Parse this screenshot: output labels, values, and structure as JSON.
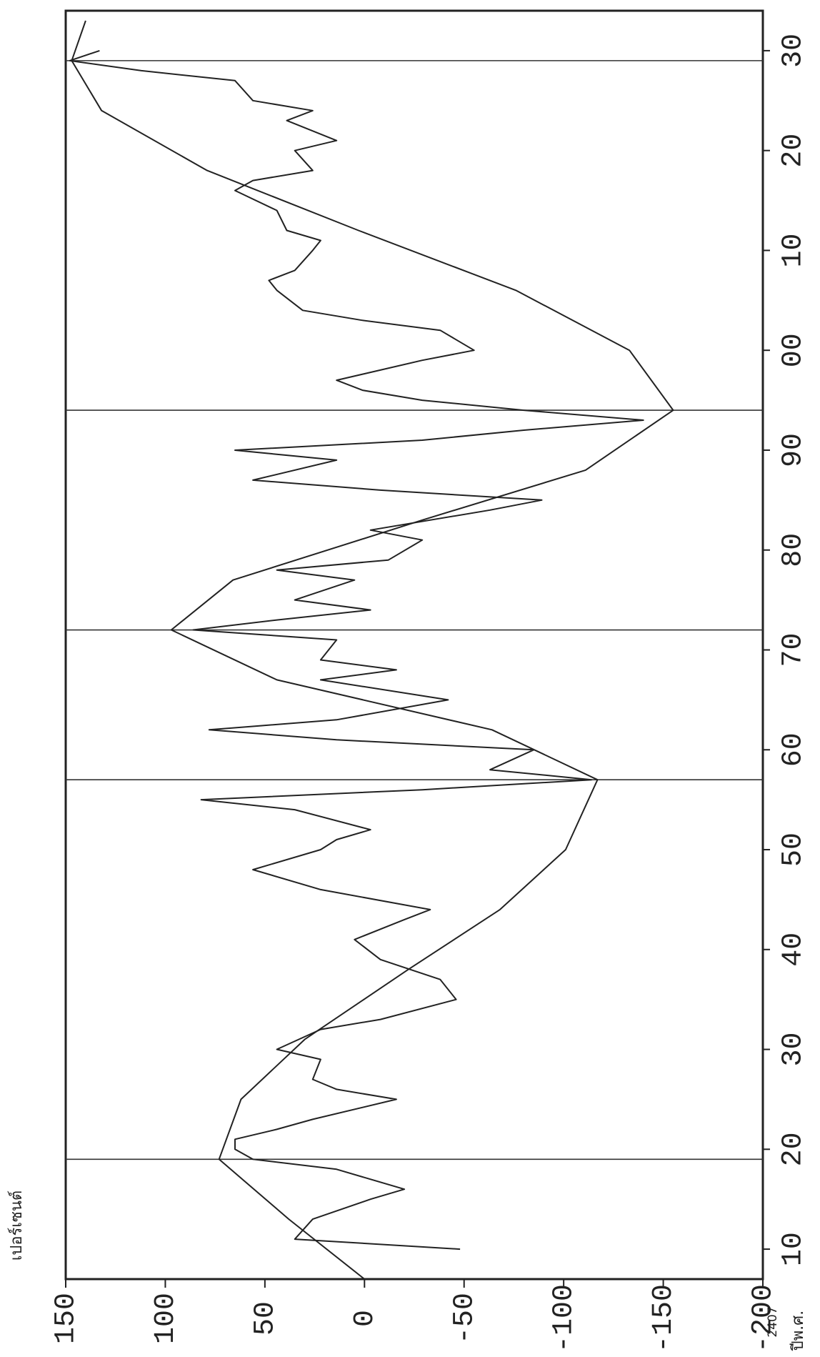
{
  "chart_data": {
    "type": "line",
    "y_label": "เปอร์เซนต์",
    "x_label": "ปีพ.ศ.",
    "x_origin_label": "2407",
    "xlim": [
      2407,
      2534
    ],
    "ylim": [
      -200,
      150
    ],
    "xticks": [
      {
        "value": 2410,
        "label": "10"
      },
      {
        "value": 2420,
        "label": "20"
      },
      {
        "value": 2430,
        "label": "30"
      },
      {
        "value": 2440,
        "label": "40"
      },
      {
        "value": 2450,
        "label": "50"
      },
      {
        "value": 2460,
        "label": "60"
      },
      {
        "value": 2470,
        "label": "70"
      },
      {
        "value": 2480,
        "label": "80"
      },
      {
        "value": 2490,
        "label": "90"
      },
      {
        "value": 2500,
        "label": "00"
      },
      {
        "value": 2510,
        "label": "10"
      },
      {
        "value": 2520,
        "label": "20"
      },
      {
        "value": 2530,
        "label": "30"
      }
    ],
    "yticks": [
      150,
      100,
      50,
      0,
      -50,
      -100,
      -150,
      -200
    ],
    "reference_lines": [
      2419,
      2457,
      2472,
      2494,
      2529
    ],
    "color": "#222222",
    "series": [
      {
        "color": "#222222",
        "x": [
          2407,
          2413,
          2419,
          2425,
          2431,
          2438,
          2444,
          2450,
          2457,
          2462,
          2467,
          2472,
          2477,
          2483,
          2488,
          2494,
          2500,
          2506,
          2512,
          2518,
          2524,
          2529,
          2533
        ],
        "values": [
          0,
          38,
          73,
          62,
          30,
          -22,
          -68,
          -101,
          -117,
          -64,
          44,
          97,
          66,
          -29,
          -111,
          -155,
          -133,
          -76,
          3,
          79,
          132,
          147,
          140
        ]
      },
      {
        "color": "#222222",
        "x": [
          2410,
          2411,
          2413,
          2415,
          2416,
          2418,
          2419,
          2420,
          2421,
          2422,
          2423,
          2425,
          2426,
          2427,
          2429,
          2430,
          2432,
          2433,
          2435,
          2437,
          2439,
          2441,
          2443,
          2444,
          2446,
          2448,
          2450,
          2451,
          2452,
          2454,
          2455,
          2456,
          2457,
          2458,
          2460,
          2461,
          2462,
          2463,
          2465,
          2467,
          2468,
          2469,
          2471,
          2472,
          2473,
          2474,
          2475,
          2477,
          2478,
          2479,
          2481,
          2482,
          2484,
          2485,
          2486,
          2487,
          2489,
          2490,
          2491,
          2492,
          2493,
          2494,
          2495,
          2496,
          2497,
          2499,
          2500,
          2502,
          2503,
          2504,
          2506,
          2507,
          2508,
          2510,
          2511,
          2512,
          2514,
          2516,
          2517,
          2518,
          2520,
          2521,
          2523,
          2524,
          2525,
          2527,
          2528,
          2529,
          2530
        ],
        "values": [
          -48,
          35,
          26,
          -3,
          -20,
          14,
          56,
          65,
          65,
          44,
          26,
          -16,
          14,
          26,
          22,
          44,
          22,
          -8,
          -46,
          -38,
          -8,
          5,
          -20,
          -33,
          22,
          56,
          22,
          14,
          -3,
          35,
          82,
          -29,
          -114,
          -63,
          -85,
          14,
          78,
          14,
          -42,
          22,
          -16,
          22,
          14,
          86,
          44,
          -3,
          35,
          5,
          44,
          -12,
          -29,
          -3,
          -63,
          -89,
          -8,
          56,
          14,
          65,
          -29,
          -80,
          -140,
          -80,
          -29,
          1,
          14,
          -29,
          -55,
          -38,
          1,
          31,
          44,
          48,
          35,
          26,
          22,
          39,
          44,
          65,
          56,
          26,
          35,
          14,
          39,
          26,
          56,
          65,
          112,
          148,
          133
        ]
      }
    ]
  }
}
